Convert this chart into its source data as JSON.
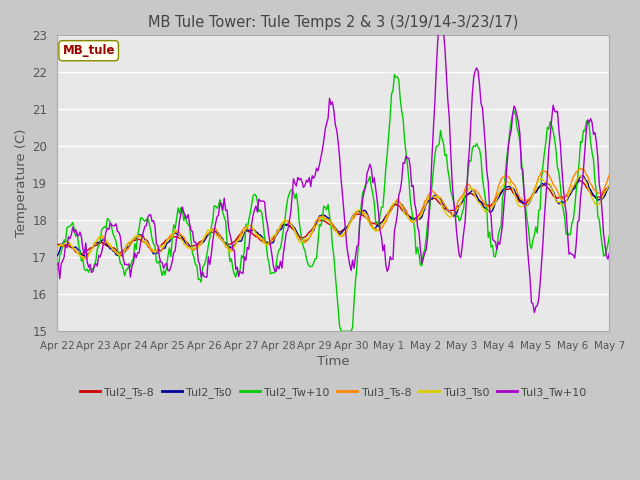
{
  "title": "MB Tule Tower: Tule Temps 2 & 3 (3/19/14-3/23/17)",
  "xlabel": "Time",
  "ylabel": "Temperature (C)",
  "ylim": [
    15.0,
    23.0
  ],
  "yticks": [
    15.0,
    16.0,
    17.0,
    18.0,
    19.0,
    20.0,
    21.0,
    22.0,
    23.0
  ],
  "legend_label": "MB_tule",
  "line_colors": {
    "Tul2_Ts-8": "#cc0000",
    "Tul2_Ts0": "#000099",
    "Tul2_Tw+10": "#00cc00",
    "Tul3_Ts-8": "#ff8800",
    "Tul3_Ts0": "#ddcc00",
    "Tul3_Tw+10": "#aa00cc"
  },
  "xtick_labels": [
    "Apr 22",
    "Apr 23",
    "Apr 24",
    "Apr 25",
    "Apr 26",
    "Apr 27",
    "Apr 28",
    "Apr 29",
    "Apr 30",
    "May 1",
    "May 2",
    "May 3",
    "May 4",
    "May 5",
    "May 6",
    "May 7"
  ],
  "fig_bg": "#c8c8c8",
  "plot_bg": "#e8e8e8"
}
